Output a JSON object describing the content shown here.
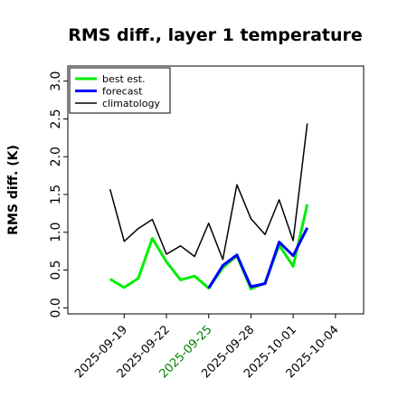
{
  "chart_data": {
    "type": "line",
    "title": "RMS diff., layer 1 temperature",
    "ylabel": "RMS diff. (K)",
    "xlabel": "",
    "ylim": [
      -0.08,
      3.2
    ],
    "xlim": [
      "2025-09-15",
      "2025-10-06"
    ],
    "grid": false,
    "legend_position": "top-left",
    "y_ticks": [
      "0.0",
      "0.5",
      "1.0",
      "1.5",
      "2.0",
      "2.5",
      "3.0"
    ],
    "x_ticks": [
      {
        "date": "2025-09-19",
        "label": "2025-09-19",
        "color": "#000000"
      },
      {
        "date": "2025-09-22",
        "label": "2025-09-22",
        "color": "#000000"
      },
      {
        "date": "2025-09-25",
        "label": "2025-09-25",
        "color": "#008000"
      },
      {
        "date": "2025-09-28",
        "label": "2025-09-28",
        "color": "#000000"
      },
      {
        "date": "2025-10-01",
        "label": "2025-10-01",
        "color": "#000000"
      },
      {
        "date": "2025-10-04",
        "label": "2025-10-04",
        "color": "#000000"
      }
    ],
    "series": [
      {
        "name": "best est.",
        "color": "#00ee00",
        "x": [
          "2025-09-18",
          "2025-09-19",
          "2025-09-20",
          "2025-09-21",
          "2025-09-22",
          "2025-09-23",
          "2025-09-24",
          "2025-09-25",
          "2025-09-26",
          "2025-09-27",
          "2025-09-28",
          "2025-09-29",
          "2025-09-30",
          "2025-10-01",
          "2025-10-02"
        ],
        "values": [
          0.38,
          0.27,
          0.39,
          0.92,
          0.61,
          0.37,
          0.42,
          0.26,
          0.53,
          0.69,
          0.25,
          0.33,
          0.83,
          0.55,
          1.37
        ]
      },
      {
        "name": "forecast",
        "color": "#0000ff",
        "x": [
          "2025-09-25",
          "2025-09-26",
          "2025-09-27",
          "2025-09-28",
          "2025-09-29",
          "2025-09-30",
          "2025-10-01",
          "2025-10-02"
        ],
        "values": [
          0.26,
          0.56,
          0.7,
          0.28,
          0.32,
          0.87,
          0.69,
          1.06
        ]
      },
      {
        "name": "climatology",
        "color": "#000000",
        "x": [
          "2025-09-18",
          "2025-09-19",
          "2025-09-20",
          "2025-09-21",
          "2025-09-22",
          "2025-09-23",
          "2025-09-24",
          "2025-09-25",
          "2025-09-26",
          "2025-09-27",
          "2025-09-28",
          "2025-09-29",
          "2025-09-30",
          "2025-10-01",
          "2025-10-02"
        ],
        "values": [
          1.57,
          0.88,
          1.05,
          1.17,
          0.71,
          0.82,
          0.68,
          1.12,
          0.64,
          1.63,
          1.18,
          0.97,
          1.43,
          0.89,
          2.44
        ]
      }
    ]
  }
}
